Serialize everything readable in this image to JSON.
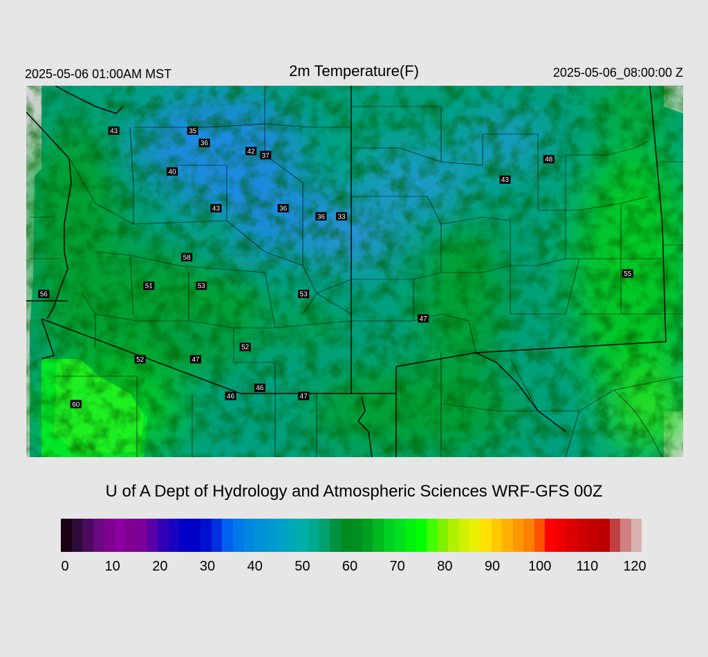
{
  "header": {
    "local_time": "2025-05-06 01:00AM MST",
    "title": "2m Temperature(F)",
    "valid_time": "2025-05-06_08:00:00 Z"
  },
  "credit": "U of A Dept of Hydrology and Atmospheric Sciences WRF-GFS 00Z",
  "colorbar": {
    "ticks": [
      "0",
      "10",
      "20",
      "30",
      "40",
      "50",
      "60",
      "70",
      "80",
      "90",
      "100",
      "110",
      "120"
    ],
    "colors": [
      "#1a0010",
      "#2d0a3a",
      "#4b0a5e",
      "#6a0a80",
      "#800090",
      "#8a00a0",
      "#800090",
      "#7a0098",
      "#5a00a8",
      "#3000b4",
      "#1a00c0",
      "#0000c8",
      "#0000c8",
      "#0010d0",
      "#0030e0",
      "#0060f0",
      "#0078e8",
      "#0088e0",
      "#0090d8",
      "#0098d0",
      "#00a0c8",
      "#00a8b8",
      "#00b0a8",
      "#00a890",
      "#00a070",
      "#009040",
      "#008a20",
      "#009020",
      "#00a020",
      "#00b820",
      "#00d020",
      "#00e020",
      "#00f010",
      "#00ff00",
      "#40ff00",
      "#80f000",
      "#b0f000",
      "#d0f000",
      "#e8f000",
      "#ffe000",
      "#ffc800",
      "#ffb000",
      "#ff9800",
      "#ff8000",
      "#ff5000",
      "#ff0000",
      "#ee0000",
      "#dd0000",
      "#cc0000",
      "#c40000",
      "#bb0000",
      "#c04040",
      "#d08080",
      "#d8b0b0"
    ]
  },
  "map": {
    "stations": [
      {
        "value": "43",
        "lon": -115.0,
        "lat": 48.5
      },
      {
        "value": "35",
        "lon": -112.3,
        "lat": 48.5
      },
      {
        "value": "36",
        "lon": -111.9,
        "lat": 48.2
      },
      {
        "value": "42",
        "lon": -110.3,
        "lat": 48.0
      },
      {
        "value": "37",
        "lon": -109.8,
        "lat": 47.9
      },
      {
        "value": "40",
        "lon": -113.0,
        "lat": 47.5
      },
      {
        "value": "43",
        "lon": -111.5,
        "lat": 46.6
      },
      {
        "value": "36",
        "lon": -109.2,
        "lat": 46.6
      },
      {
        "value": "36",
        "lon": -107.9,
        "lat": 46.4
      },
      {
        "value": "33",
        "lon": -107.2,
        "lat": 46.4
      },
      {
        "value": "48",
        "lon": -100.1,
        "lat": 47.8
      },
      {
        "value": "43",
        "lon": -101.6,
        "lat": 47.3
      },
      {
        "value": "58",
        "lon": -112.5,
        "lat": 45.4
      },
      {
        "value": "51",
        "lon": -113.8,
        "lat": 44.7
      },
      {
        "value": "53",
        "lon": -112.0,
        "lat": 44.7
      },
      {
        "value": "53",
        "lon": -108.5,
        "lat": 44.5
      },
      {
        "value": "56",
        "lon": -117.4,
        "lat": 44.5
      },
      {
        "value": "55",
        "lon": -97.4,
        "lat": 45.0
      },
      {
        "value": "47",
        "lon": -104.4,
        "lat": 43.9
      },
      {
        "value": "52",
        "lon": -110.5,
        "lat": 43.2
      },
      {
        "value": "52",
        "lon": -114.1,
        "lat": 42.9
      },
      {
        "value": "47",
        "lon": -112.2,
        "lat": 42.9
      },
      {
        "value": "46",
        "lon": -110.0,
        "lat": 42.2
      },
      {
        "value": "46",
        "lon": -111.0,
        "lat": 42.0
      },
      {
        "value": "47",
        "lon": -108.5,
        "lat": 42.0
      },
      {
        "value": "60",
        "lon": -116.3,
        "lat": 41.8
      }
    ]
  }
}
